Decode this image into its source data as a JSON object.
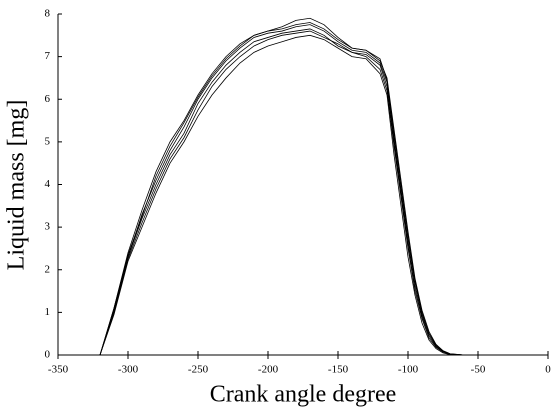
{
  "chart_data": {
    "type": "line",
    "x_label": "Crank angle degree",
    "y_label": "Liquid mass [mg]",
    "x": [
      -320,
      -310,
      -300,
      -290,
      -280,
      -270,
      -260,
      -250,
      -240,
      -230,
      -220,
      -210,
      -200,
      -190,
      -180,
      -170,
      -160,
      -150,
      -140,
      -130,
      -120,
      -115,
      -110,
      -105,
      -100,
      -95,
      -90,
      -85,
      -80,
      -75,
      -70,
      -60
    ],
    "series": [
      {
        "color": "#000000",
        "values": [
          0,
          1.0,
          2.3,
          3.2,
          4.0,
          4.7,
          5.2,
          5.9,
          6.4,
          6.8,
          7.1,
          7.35,
          7.45,
          7.55,
          7.6,
          7.65,
          7.5,
          7.25,
          7.1,
          7.05,
          6.8,
          6.3,
          5.0,
          3.8,
          2.6,
          1.6,
          0.9,
          0.45,
          0.2,
          0.08,
          0.02,
          0
        ]
      },
      {
        "color": "#000000",
        "values": [
          0,
          1.1,
          2.4,
          3.4,
          4.3,
          5.0,
          5.5,
          6.1,
          6.6,
          7.0,
          7.3,
          7.5,
          7.6,
          7.7,
          7.85,
          7.9,
          7.75,
          7.45,
          7.2,
          7.15,
          6.9,
          6.5,
          5.3,
          4.1,
          2.9,
          1.8,
          1.05,
          0.55,
          0.25,
          0.1,
          0.03,
          0
        ]
      },
      {
        "color": "#000000",
        "values": [
          0,
          0.95,
          2.2,
          3.0,
          3.8,
          4.5,
          5.0,
          5.6,
          6.1,
          6.5,
          6.85,
          7.1,
          7.25,
          7.35,
          7.45,
          7.5,
          7.4,
          7.2,
          7.0,
          6.95,
          6.6,
          6.1,
          4.7,
          3.5,
          2.3,
          1.4,
          0.75,
          0.35,
          0.15,
          0.05,
          0.01,
          0
        ]
      },
      {
        "color": "#000000",
        "values": [
          0,
          1.05,
          2.3,
          3.3,
          4.1,
          4.8,
          5.35,
          6.0,
          6.5,
          6.9,
          7.2,
          7.45,
          7.55,
          7.6,
          7.7,
          7.75,
          7.6,
          7.35,
          7.15,
          7.1,
          6.85,
          6.4,
          5.1,
          3.9,
          2.7,
          1.7,
          0.95,
          0.5,
          0.22,
          0.09,
          0.02,
          0
        ]
      },
      {
        "color": "#000000",
        "values": [
          0,
          1.0,
          2.25,
          3.1,
          3.9,
          4.6,
          5.1,
          5.75,
          6.3,
          6.7,
          7.0,
          7.25,
          7.4,
          7.5,
          7.55,
          7.6,
          7.45,
          7.3,
          7.1,
          7.0,
          6.7,
          6.2,
          4.9,
          3.7,
          2.5,
          1.5,
          0.85,
          0.4,
          0.18,
          0.07,
          0.02,
          0
        ]
      },
      {
        "color": "#000000",
        "values": [
          0,
          1.1,
          2.35,
          3.25,
          4.2,
          4.9,
          5.45,
          6.05,
          6.55,
          6.95,
          7.25,
          7.5,
          7.6,
          7.65,
          7.75,
          7.8,
          7.65,
          7.4,
          7.2,
          7.15,
          6.95,
          6.45,
          5.2,
          4.0,
          2.8,
          1.75,
          1.0,
          0.5,
          0.24,
          0.1,
          0.03,
          0
        ]
      }
    ],
    "xlim": [
      -350,
      0
    ],
    "xticks": [
      -350,
      -300,
      -250,
      -200,
      -150,
      -100,
      -50,
      0
    ],
    "ylim": [
      0,
      8
    ],
    "yticks": [
      0,
      1,
      2,
      3,
      4,
      5,
      6,
      7,
      8
    ]
  }
}
